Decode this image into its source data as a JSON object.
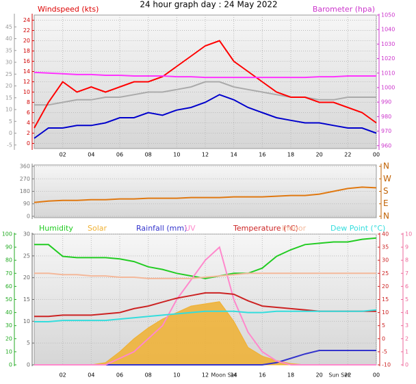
{
  "chart_data": [
    {
      "type": "line",
      "title": "24 hour graph day : 24 May 2022",
      "y_label": "Windspeed (kts)",
      "y2_label": "Barometer (hpa)",
      "x": [
        0,
        1,
        2,
        3,
        4,
        5,
        6,
        7,
        8,
        9,
        10,
        11,
        12,
        13,
        14,
        15,
        16,
        17,
        18,
        19,
        20,
        21,
        22,
        23,
        24
      ],
      "xlim": [
        0,
        24
      ],
      "xticks": [
        {
          "value": 2,
          "label": "02"
        },
        {
          "value": 4,
          "label": "04"
        },
        {
          "value": 6,
          "label": "06"
        },
        {
          "value": 8,
          "label": "08"
        },
        10,
        12,
        14,
        16,
        18,
        20,
        22,
        {
          "value": 24,
          "label": "00"
        }
      ],
      "ylim": [
        -1,
        25
      ],
      "yticks": [
        0,
        2,
        4,
        6,
        8,
        10,
        12,
        14,
        16,
        18,
        20,
        22,
        24
      ],
      "y2lim": [
        958,
        1050
      ],
      "y2ticks": [
        960,
        970,
        980,
        990,
        1000,
        1010,
        1020,
        1030,
        1040,
        1050
      ],
      "y3lim": [
        -6.5,
        50
      ],
      "y3ticks": [
        -5,
        0,
        5,
        10,
        15,
        20,
        25,
        30,
        35,
        40,
        45
      ],
      "grid": true,
      "series": [
        {
          "color": "#aaaaaa",
          "axis": "y",
          "values": [
            7.5,
            7.5,
            8,
            8.5,
            8.5,
            9,
            9,
            9.5,
            10,
            10,
            10.5,
            11,
            12,
            12,
            11,
            10.5,
            10,
            9.5,
            9,
            9,
            8.5,
            8.5,
            9,
            9,
            9
          ]
        },
        {
          "color": "#ff0000",
          "axis": "y",
          "values": [
            3,
            8,
            12,
            10,
            11,
            10,
            11,
            12,
            12,
            13,
            15,
            17,
            19,
            20,
            16,
            14,
            12,
            10,
            9,
            9,
            8,
            8,
            7,
            6,
            4
          ]
        },
        {
          "color": "#0000cc",
          "axis": "y",
          "values": [
            1,
            3,
            3,
            3.5,
            3.5,
            4,
            5,
            5,
            6,
            5.5,
            6.5,
            7,
            8,
            9.5,
            8.5,
            7,
            6,
            5,
            4.5,
            4,
            4,
            3.5,
            3,
            3,
            2
          ]
        },
        {
          "color": "#ff33ff",
          "axis": "y2",
          "values": [
            1010.5,
            1010,
            1009.5,
            1009,
            1009,
            1008.5,
            1008.5,
            1008,
            1008,
            1008,
            1007.5,
            1007.5,
            1007,
            1007,
            1007,
            1007,
            1007,
            1007,
            1007,
            1007,
            1007.5,
            1007.5,
            1008,
            1008,
            1008
          ]
        }
      ]
    },
    {
      "type": "line",
      "x": [
        0,
        1,
        2,
        3,
        4,
        5,
        6,
        7,
        8,
        9,
        10,
        11,
        12,
        13,
        14,
        15,
        16,
        17,
        18,
        19,
        20,
        21,
        22,
        23,
        24
      ],
      "xlim": [
        0,
        24
      ],
      "ylim": [
        -10,
        370
      ],
      "yticks": [
        0,
        90,
        180,
        270,
        360
      ],
      "y2lim": [
        -10,
        370
      ],
      "y2ticks": [
        {
          "value": 360,
          "label": "N"
        },
        {
          "value": 270,
          "label": "W"
        },
        {
          "value": 180,
          "label": "S"
        },
        {
          "value": 90,
          "label": "E"
        },
        {
          "value": 0,
          "label": "N"
        }
      ],
      "grid": true,
      "series": [
        {
          "color": "#e07810",
          "axis": "y",
          "values": [
            100,
            110,
            115,
            115,
            120,
            120,
            125,
            125,
            130,
            130,
            130,
            135,
            135,
            135,
            140,
            140,
            140,
            145,
            150,
            150,
            160,
            180,
            200,
            210,
            205
          ]
        }
      ]
    },
    {
      "type": "line",
      "x": [
        0,
        1,
        2,
        3,
        4,
        5,
        6,
        7,
        8,
        9,
        10,
        11,
        12,
        13,
        14,
        15,
        16,
        17,
        18,
        19,
        20,
        21,
        22,
        23,
        24
      ],
      "xlim": [
        0,
        24
      ],
      "xticks": [
        {
          "value": 2,
          "label": "02"
        },
        {
          "value": 4,
          "label": "04"
        },
        {
          "value": 6,
          "label": "06"
        },
        {
          "value": 8,
          "label": "08"
        },
        10,
        12,
        14,
        16,
        18,
        20,
        22,
        {
          "value": 24,
          "label": "00"
        }
      ],
      "ylim": [
        0,
        30
      ],
      "yticks": [
        0,
        5,
        10,
        15,
        20,
        25,
        30
      ],
      "y3lim": [
        0,
        100
      ],
      "y3ticks": [
        0,
        10,
        20,
        30,
        40,
        50,
        60,
        70,
        80,
        90,
        100
      ],
      "y2lim": [
        -10,
        40
      ],
      "y2ticks": [
        -10,
        -5,
        0,
        5,
        10,
        15,
        20,
        25,
        30,
        35,
        40
      ],
      "y4lim": [
        0,
        10
      ],
      "y4ticks": [
        0,
        1,
        2,
        3,
        4,
        5,
        6,
        7,
        8,
        9,
        10
      ],
      "grid": true,
      "annotations": [
        {
          "text": "Moon Set",
          "x": 13.3
        },
        {
          "text": "Sun Set",
          "x": 21.4
        }
      ],
      "series": [
        {
          "name": "Humidity",
          "color": "#22cc22",
          "axis": "y3",
          "values": [
            92,
            92,
            83,
            82,
            82,
            82,
            81,
            79,
            75,
            73,
            70,
            68,
            66,
            68,
            70,
            70,
            74,
            83,
            88,
            92,
            93,
            94,
            94,
            96,
            97
          ]
        },
        {
          "name": "Solar",
          "color": "#f0b030",
          "axis": "y",
          "area": true,
          "values": [
            0,
            0,
            0,
            0,
            0,
            0.5,
            3,
            6,
            8.5,
            10.5,
            12,
            13.5,
            14,
            14.5,
            10,
            4,
            2,
            1,
            0.3,
            0,
            0,
            0,
            0,
            0,
            0
          ]
        },
        {
          "name": "Rainfall (mm)",
          "color": "#3333cc",
          "axis": "y",
          "values": [
            0,
            0,
            0,
            0,
            0,
            0,
            0,
            0,
            0,
            0,
            0,
            0,
            0,
            0,
            0,
            0,
            0,
            0.5,
            1.5,
            2.5,
            3.3,
            3.3,
            3.3,
            3.3,
            3.3
          ]
        },
        {
          "name": "UV",
          "color": "#ff88cc",
          "axis": "y4",
          "values": [
            0,
            0,
            0,
            0,
            0,
            0,
            0.5,
            1,
            2,
            3,
            5,
            6.5,
            8,
            9,
            5,
            2.5,
            1,
            0.3,
            0,
            0,
            0,
            0,
            0,
            0,
            0
          ]
        },
        {
          "name": "Temperature (°C)",
          "color": "#cc2222",
          "axis": "y2",
          "values": [
            8.5,
            8.5,
            9,
            9,
            9,
            9.5,
            10,
            11.5,
            12.5,
            14,
            15.5,
            16.5,
            17.5,
            17.5,
            17,
            14.5,
            12.5,
            12,
            11.5,
            11,
            10.5,
            10.5,
            10.5,
            10.5,
            10.5
          ]
        },
        {
          "name": "Indoor",
          "color": "#f4b89a",
          "axis": "y2",
          "values": [
            25,
            25,
            24.5,
            24.5,
            24,
            24,
            23.5,
            23.5,
            23,
            23,
            23,
            23,
            23.5,
            24,
            24.5,
            25,
            25,
            25,
            25,
            25,
            25,
            25,
            25,
            25,
            25
          ]
        },
        {
          "name": "Dew Point (°C)",
          "color": "#33dddd",
          "axis": "y2",
          "values": [
            6.5,
            6.5,
            7,
            7,
            7,
            7,
            7.5,
            8,
            8.5,
            9,
            9.5,
            10,
            10.5,
            10.5,
            10.5,
            10,
            10,
            10.5,
            10.5,
            10.5,
            10.5,
            10.5,
            10.5,
            10.5,
            11
          ]
        }
      ]
    }
  ]
}
